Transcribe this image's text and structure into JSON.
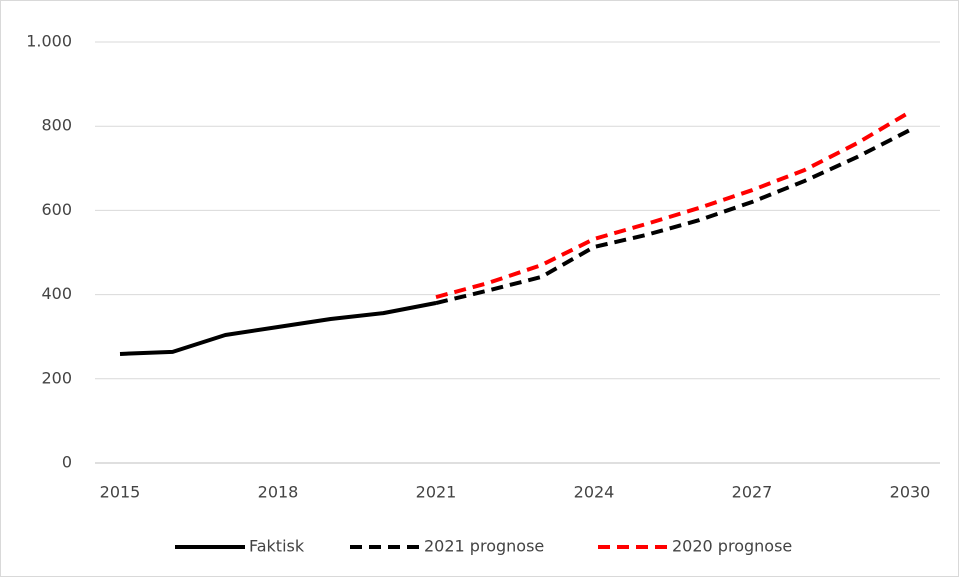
{
  "chart_data": {
    "type": "line",
    "x": [
      2015,
      2016,
      2017,
      2018,
      2019,
      2020,
      2021,
      2022,
      2023,
      2024,
      2025,
      2026,
      2027,
      2028,
      2029,
      2030
    ],
    "series": [
      {
        "name": "Faktisk",
        "color": "#000000",
        "dash": false,
        "values": [
          259,
          264,
          304,
          323,
          342,
          356,
          380,
          null,
          null,
          null,
          null,
          null,
          null,
          null,
          null,
          null
        ]
      },
      {
        "name": "2021 prognose",
        "color": "#000000",
        "dash": true,
        "values": [
          null,
          null,
          null,
          null,
          null,
          null,
          380,
          410,
          442,
          513,
          542,
          577,
          620,
          670,
          727,
          791
        ]
      },
      {
        "name": "2020 prognose",
        "color": "#ff0000",
        "dash": true,
        "values": [
          null,
          null,
          null,
          null,
          null,
          null,
          394,
          428,
          470,
          532,
          568,
          606,
          648,
          696,
          760,
          834
        ]
      }
    ],
    "xlim": [
      2015,
      2030
    ],
    "xticks": [
      2015,
      2018,
      2021,
      2024,
      2027,
      2030
    ],
    "ylim": [
      0,
      1000
    ],
    "yticks": [
      0,
      200,
      400,
      600,
      800,
      {
        "value": 1000,
        "label": "1.000"
      }
    ],
    "grid": true,
    "legend": "bottom"
  }
}
